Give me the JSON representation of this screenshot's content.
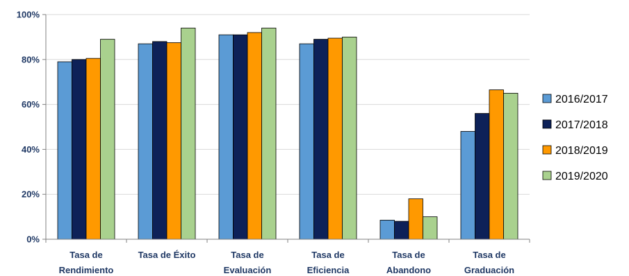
{
  "chart_data": {
    "type": "bar",
    "title": "",
    "xlabel": "",
    "ylabel": "",
    "ylim": [
      0,
      100
    ],
    "yticks": [
      "0%",
      "20%",
      "40%",
      "60%",
      "80%",
      "100%"
    ],
    "ytick_values": [
      0,
      20,
      40,
      60,
      80,
      100
    ],
    "grid": true,
    "legend_position": "right",
    "categories": [
      [
        "Tasa de",
        "Rendimiento"
      ],
      [
        "Tasa de Éxito"
      ],
      [
        "Tasa de",
        "Evaluación"
      ],
      [
        "Tasa de",
        "Eficiencia"
      ],
      [
        "Tasa de",
        "Abandono"
      ],
      [
        "Tasa de",
        "Graduación"
      ]
    ],
    "series": [
      {
        "name": "2016/2017",
        "color": "#5b9bd5",
        "values": [
          79,
          87,
          91,
          87,
          8.5,
          48
        ]
      },
      {
        "name": "2017/2018",
        "color": "#0d2158",
        "values": [
          80,
          88,
          91,
          89,
          8,
          56
        ]
      },
      {
        "name": "2018/2019",
        "color": "#ff9900",
        "values": [
          80.5,
          87.5,
          92,
          89.5,
          18,
          66.5
        ]
      },
      {
        "name": "2019/2020",
        "color": "#a9d18e",
        "values": [
          89,
          94,
          94,
          90,
          10,
          65
        ]
      }
    ]
  }
}
